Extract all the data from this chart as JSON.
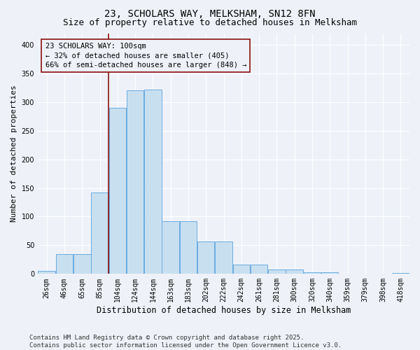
{
  "title_line1": "23, SCHOLARS WAY, MELKSHAM, SN12 8FN",
  "title_line2": "Size of property relative to detached houses in Melksham",
  "xlabel": "Distribution of detached houses by size in Melksham",
  "ylabel": "Number of detached properties",
  "categories": [
    "26sqm",
    "46sqm",
    "65sqm",
    "85sqm",
    "104sqm",
    "124sqm",
    "144sqm",
    "163sqm",
    "183sqm",
    "202sqm",
    "222sqm",
    "242sqm",
    "261sqm",
    "281sqm",
    "300sqm",
    "320sqm",
    "340sqm",
    "359sqm",
    "379sqm",
    "398sqm",
    "418sqm"
  ],
  "values": [
    5,
    34,
    35,
    142,
    290,
    320,
    322,
    92,
    92,
    57,
    57,
    16,
    16,
    8,
    8,
    3,
    3,
    1,
    1,
    0,
    2
  ],
  "bar_color": "#c8dff0",
  "bar_edge_color": "#6aace0",
  "vline_color": "#8b1010",
  "annotation_text": "23 SCHOLARS WAY: 100sqm\n← 32% of detached houses are smaller (405)\n66% of semi-detached houses are larger (848) →",
  "annotation_box_color": "#8b1010",
  "ylim": [
    0,
    420
  ],
  "yticks": [
    0,
    50,
    100,
    150,
    200,
    250,
    300,
    350,
    400
  ],
  "background_color": "#eef2f8",
  "grid_color": "#ffffff",
  "footer_text": "Contains HM Land Registry data © Crown copyright and database right 2025.\nContains public sector information licensed under the Open Government Licence v3.0.",
  "title_fontsize": 10,
  "subtitle_fontsize": 9,
  "xlabel_fontsize": 8.5,
  "ylabel_fontsize": 8,
  "tick_fontsize": 7,
  "annotation_fontsize": 7.5,
  "footer_fontsize": 6.5,
  "vline_xindex": 4
}
